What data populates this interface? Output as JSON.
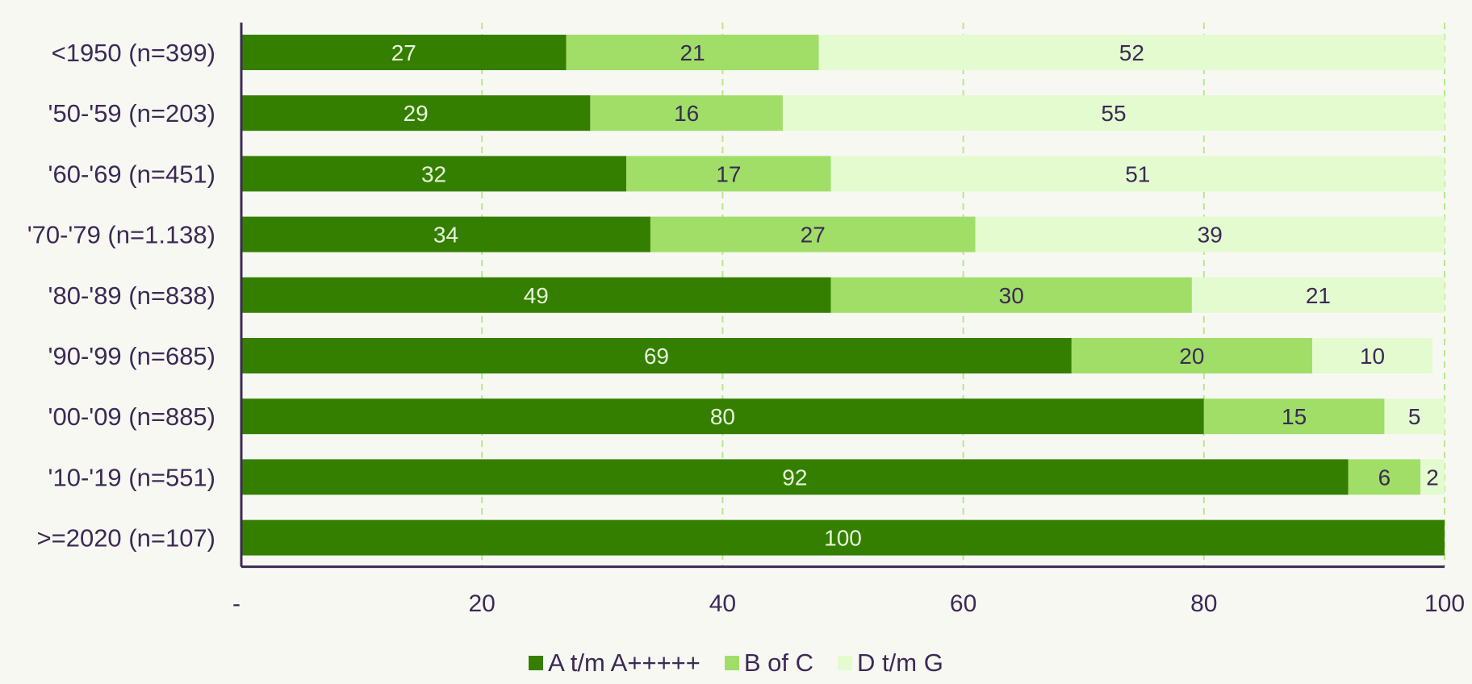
{
  "chart_data": {
    "type": "bar",
    "orientation": "horizontal",
    "stacked": true,
    "categories": [
      "<1950 (n=399)",
      "'50-'59 (n=203)",
      "'60-'69 (n=451)",
      "'70-'79 (n=1.138)",
      "'80-'89 (n=838)",
      "'90-'99 (n=685)",
      "'00-'09 (n=885)",
      "'10-'19 (n=551)",
      ">=2020 (n=107)"
    ],
    "series": [
      {
        "name": "A t/m A+++++",
        "color": "#347f00",
        "label_color": "#e8f5da",
        "values": [
          27,
          29,
          32,
          34,
          49,
          69,
          80,
          92,
          100
        ]
      },
      {
        "name": "B of C",
        "color": "#a0de68",
        "label_color": "#3b2a55",
        "values": [
          21,
          16,
          17,
          27,
          30,
          20,
          15,
          6,
          0
        ]
      },
      {
        "name": "D t/m G",
        "color": "#e3fbcf",
        "label_color": "#3b2a55",
        "values": [
          52,
          55,
          51,
          39,
          21,
          10,
          5,
          2,
          0
        ]
      }
    ],
    "value_labels": [
      [
        "27",
        "21",
        "52"
      ],
      [
        "29",
        "16",
        "55"
      ],
      [
        "32",
        "17",
        "51"
      ],
      [
        "34",
        "27",
        "39"
      ],
      [
        "49",
        "30",
        "21"
      ],
      [
        "69",
        "20",
        "10"
      ],
      [
        "80",
        "15",
        "5"
      ],
      [
        "92",
        "6",
        "2"
      ],
      [
        "100",
        "",
        ""
      ]
    ],
    "x_ticks": [
      0,
      20,
      40,
      60,
      80,
      100
    ],
    "x_tick_labels": [
      "-",
      "20",
      "40",
      "60",
      "80",
      "100"
    ],
    "xlim": [
      0,
      100
    ],
    "grid": true,
    "grid_color": "#b6e88a",
    "axis_color": "#3b2a55",
    "legend_position": "bottom"
  }
}
